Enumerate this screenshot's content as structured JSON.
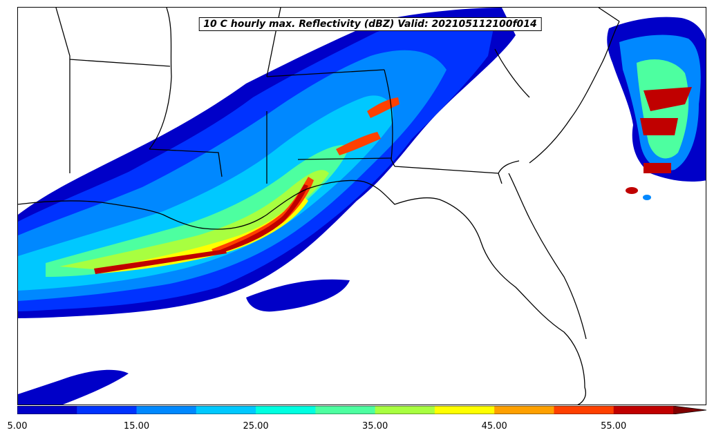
{
  "title": "10 C hourly max. Reflectivity (dBZ) Valid: 202105112100f014",
  "colorbar": {
    "levels": [
      5,
      10,
      15,
      20,
      25,
      30,
      35,
      40,
      45,
      50,
      55
    ],
    "colors": [
      "#0000c8",
      "#0033ff",
      "#0088ff",
      "#00c8ff",
      "#00ffe0",
      "#4dffa0",
      "#a8ff40",
      "#ffff00",
      "#ffa000",
      "#ff4000",
      "#c00000"
    ],
    "extend_color": "#800000",
    "tick_labels": [
      "5.00",
      "15.00",
      "25.00",
      "35.00",
      "45.00",
      "55.00"
    ]
  }
}
